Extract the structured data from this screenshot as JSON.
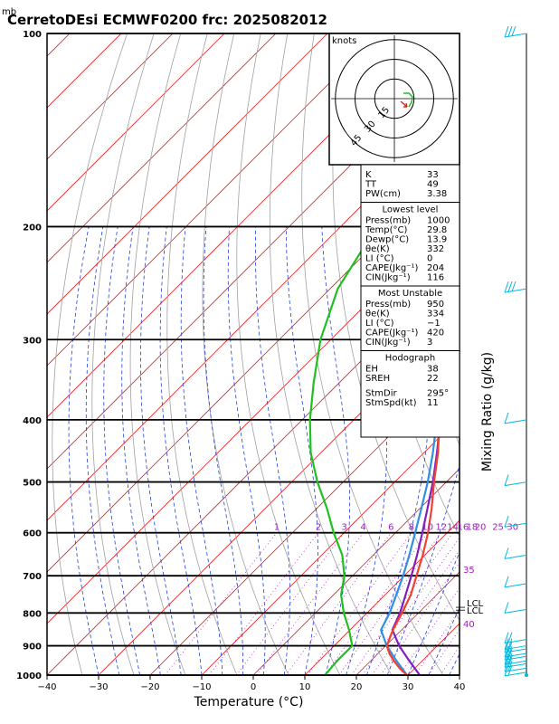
{
  "header": {
    "unit_mb": "mb",
    "title": "CerretoDEsi ECMWF0200 frc: 2025082012"
  },
  "chart_data": {
    "type": "skew-t",
    "xlabel": "Temperature (°C)",
    "right_label": "Mixing Ratio (g/kg)",
    "x_ticks": [
      -40,
      -30,
      -20,
      -10,
      0,
      10,
      20,
      30,
      40
    ],
    "p_ticks": [
      100,
      200,
      300,
      400,
      500,
      600,
      700,
      800,
      900,
      1000
    ],
    "mixing_ratio_labels": [
      "1",
      "2",
      "3",
      "4",
      "6",
      "8",
      "10",
      "12",
      "14",
      "16",
      "18",
      "20",
      "25",
      "30",
      "35",
      "40"
    ],
    "lcl_labels": [
      "LCL",
      "LCL"
    ],
    "temperature": [
      {
        "p": 1000,
        "t": 29.8
      },
      {
        "p": 975,
        "t": 27.0
      },
      {
        "p": 950,
        "t": 24.5
      },
      {
        "p": 925,
        "t": 22.2
      },
      {
        "p": 900,
        "t": 20.2
      },
      {
        "p": 850,
        "t": 18.3
      },
      {
        "p": 800,
        "t": 16.8
      },
      {
        "p": 750,
        "t": 15.0
      },
      {
        "p": 700,
        "t": 12.4
      },
      {
        "p": 650,
        "t": 9.6
      },
      {
        "p": 600,
        "t": 6.3
      },
      {
        "p": 550,
        "t": 2.3
      },
      {
        "p": 500,
        "t": -2.4
      },
      {
        "p": 450,
        "t": -7.3
      },
      {
        "p": 400,
        "t": -13.4
      },
      {
        "p": 350,
        "t": -20.2
      },
      {
        "p": 300,
        "t": -29.0
      },
      {
        "p": 250,
        "t": -39.6
      },
      {
        "p": 200,
        "t": -50.0
      },
      {
        "p": 150,
        "t": -62.0
      },
      {
        "p": 100,
        "t": -71.0
      }
    ],
    "dewpoint": [
      {
        "p": 1000,
        "t": 13.9
      },
      {
        "p": 950,
        "t": 13.5
      },
      {
        "p": 900,
        "t": 13.5
      },
      {
        "p": 850,
        "t": 9.8
      },
      {
        "p": 800,
        "t": 5.5
      },
      {
        "p": 750,
        "t": 1.5
      },
      {
        "p": 700,
        "t": -1.6
      },
      {
        "p": 650,
        "t": -6.0
      },
      {
        "p": 600,
        "t": -12.0
      },
      {
        "p": 550,
        "t": -18.0
      },
      {
        "p": 500,
        "t": -25.0
      },
      {
        "p": 450,
        "t": -32.0
      },
      {
        "p": 400,
        "t": -38.5
      },
      {
        "p": 350,
        "t": -45.0
      },
      {
        "p": 300,
        "t": -52.0
      },
      {
        "p": 250,
        "t": -58.5
      },
      {
        "p": 200,
        "t": -63.0
      },
      {
        "p": 150,
        "t": -72.0
      },
      {
        "p": 100,
        "t": -84.0
      }
    ],
    "parcel": [
      {
        "p": 1000,
        "t": 29.8
      },
      {
        "p": 950,
        "t": 25.0
      },
      {
        "p": 900,
        "t": 20.2
      },
      {
        "p": 850,
        "t": 16.0
      },
      {
        "p": 800,
        "t": 14.4
      },
      {
        "p": 750,
        "t": 12.2
      },
      {
        "p": 700,
        "t": 9.8
      },
      {
        "p": 650,
        "t": 7.0
      },
      {
        "p": 600,
        "t": 3.8
      },
      {
        "p": 550,
        "t": 0.3
      },
      {
        "p": 500,
        "t": -3.6
      },
      {
        "p": 450,
        "t": -8.3
      },
      {
        "p": 400,
        "t": -13.9
      },
      {
        "p": 350,
        "t": -20.8
      },
      {
        "p": 300,
        "t": -29.2
      },
      {
        "p": 250,
        "t": -39.6
      },
      {
        "p": 200,
        "t": -53.0
      },
      {
        "p": 150,
        "t": -71.0
      },
      {
        "p": 110,
        "t": -91.0
      }
    ],
    "virtual_parcel": [
      {
        "p": 1000,
        "t": 32.3
      },
      {
        "p": 950,
        "t": 27.5
      },
      {
        "p": 900,
        "t": 22.6
      },
      {
        "p": 850,
        "t": 18.2
      },
      {
        "p": 800,
        "t": 16.4
      },
      {
        "p": 750,
        "t": 14.0
      },
      {
        "p": 700,
        "t": 11.4
      },
      {
        "p": 650,
        "t": 8.5
      },
      {
        "p": 600,
        "t": 5.2
      },
      {
        "p": 550,
        "t": 1.5
      },
      {
        "p": 500,
        "t": -2.6
      },
      {
        "p": 450,
        "t": -7.5
      },
      {
        "p": 400,
        "t": -13.2
      },
      {
        "p": 350,
        "t": -20.2
      },
      {
        "p": 300,
        "t": -28.6
      },
      {
        "p": 250,
        "t": -39.0
      },
      {
        "p": 200,
        "t": -52.0
      },
      {
        "p": 150,
        "t": -69.0
      },
      {
        "p": 110,
        "t": -88.0
      }
    ]
  },
  "hodograph": {
    "unit": "knots",
    "rings": [
      "15",
      "30",
      "45"
    ]
  },
  "indices": {
    "basic": [
      {
        "label": "K",
        "value": "33"
      },
      {
        "label": "TT",
        "value": "49"
      },
      {
        "label": "PW(cm)",
        "value": "3.38"
      }
    ],
    "lowest_title": "Lowest level",
    "lowest": [
      {
        "label": "Press(mb)",
        "value": "1000"
      },
      {
        "label": "Temp(°C)",
        "value": "29.8"
      },
      {
        "label": "Dewp(°C)",
        "value": "13.9"
      },
      {
        "label": "θe(K)",
        "value": "332"
      },
      {
        "label": "LI (°C)",
        "value": "0"
      },
      {
        "label": "CAPE(Jkg⁻¹)",
        "value": "204"
      },
      {
        "label": "CIN(Jkg⁻¹)",
        "value": "116"
      }
    ],
    "unstable_title": "Most Unstable",
    "unstable": [
      {
        "label": "Press(mb)",
        "value": "950"
      },
      {
        "label": "θe(K)",
        "value": "334"
      },
      {
        "label": "LI (°C)",
        "value": "−1"
      },
      {
        "label": "CAPE(Jkg⁻¹)",
        "value": "420"
      },
      {
        "label": "CIN(Jkg⁻¹)",
        "value": "3"
      }
    ],
    "hodo_title": "Hodograph",
    "hodo": [
      {
        "label": "EH",
        "value": "38"
      },
      {
        "label": "SREH",
        "value": "22"
      },
      {
        "label": "StmDir",
        "value": "295°"
      },
      {
        "label": "StmSpd(kt)",
        "value": "11"
      }
    ]
  },
  "colors": {
    "temperature": "#f04030",
    "dewpoint": "#20c020",
    "parcel": "#3090e0",
    "virtual_parcel": "#8020c0",
    "isotherm": "#e02020",
    "dry_adiabat": "#a0a0a0",
    "moist_adiabat": "#2040e0",
    "mixing_ratio": "#b020c0",
    "barbs": "#00b8e0"
  }
}
